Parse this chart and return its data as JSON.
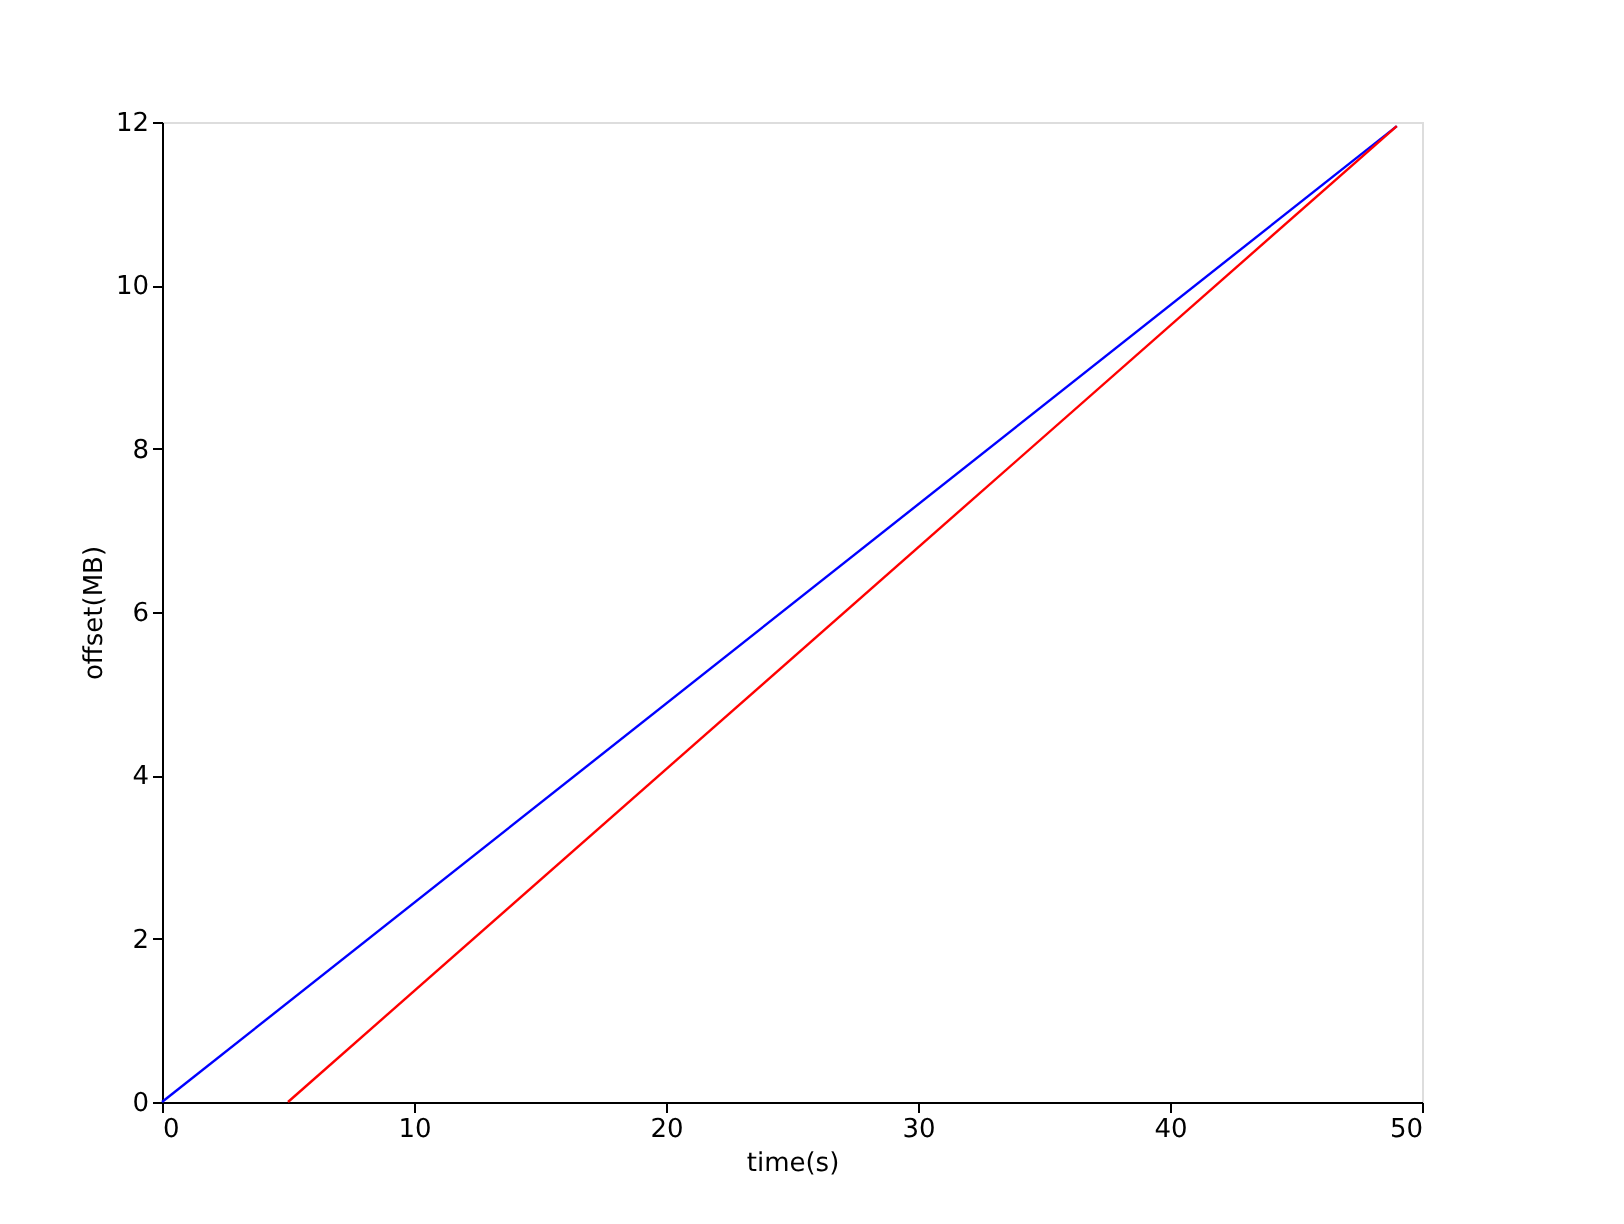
{
  "chart_data": {
    "type": "line",
    "xlabel": "time(s)",
    "ylabel": "offset(MB)",
    "series": [
      {
        "color": "#0000ff",
        "x": [
          0,
          49
        ],
        "values": [
          0,
          11.95
        ]
      },
      {
        "color": "#ff0000",
        "x": [
          5,
          49
        ],
        "values": [
          0,
          11.95
        ]
      }
    ],
    "xlim": [
      0,
      50
    ],
    "xticks": [
      0,
      10,
      20,
      30,
      40,
      50
    ],
    "ylim": [
      0,
      12
    ],
    "yticks": [
      0,
      2,
      4,
      6,
      8,
      10,
      12
    ],
    "grid": false,
    "legend": false,
    "marker": "none",
    "line_style": "solid"
  }
}
